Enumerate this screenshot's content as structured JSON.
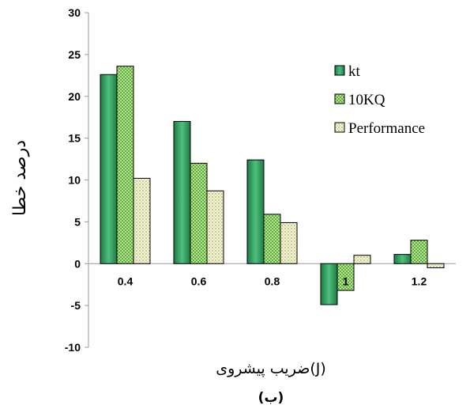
{
  "chart_data": {
    "type": "bar",
    "title": "",
    "xlabel": "ضریب پیشروی(J)",
    "ylabel": "درصد خطا",
    "caption": "(ب)",
    "categories": [
      "0.4",
      "0.6",
      "0.8",
      "1",
      "1.2"
    ],
    "ylim": [
      -10,
      30
    ],
    "yticks": [
      -10,
      -5,
      0,
      5,
      10,
      15,
      20,
      25,
      30
    ],
    "grid": false,
    "legend_position": "right",
    "series": [
      {
        "name": "kt",
        "values": [
          22.6,
          17.0,
          12.4,
          -4.9,
          1.1
        ],
        "color": "#2e9a5e",
        "pattern": "solid"
      },
      {
        "name": "10KQ",
        "values": [
          23.6,
          12.0,
          5.9,
          -3.2,
          2.8
        ],
        "color": "#8fcf6a",
        "pattern": "checker"
      },
      {
        "name": "Performance",
        "values": [
          10.2,
          8.7,
          4.9,
          1.0,
          -0.5
        ],
        "color": "#e4e6bf",
        "pattern": "dots"
      }
    ]
  }
}
